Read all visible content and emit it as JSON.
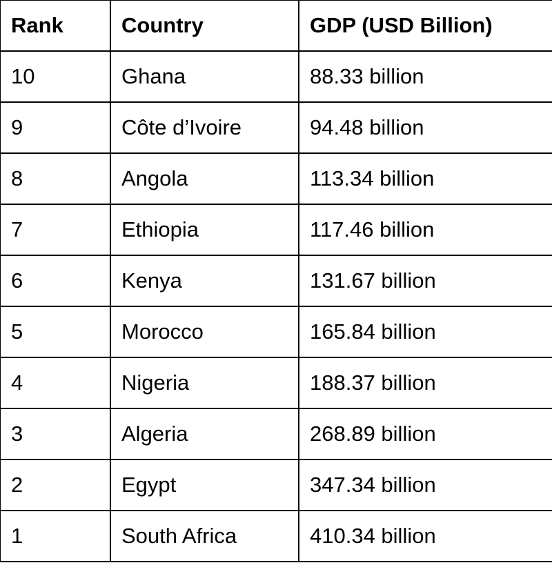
{
  "table": {
    "headers": {
      "rank": "Rank",
      "country": "Country",
      "gdp": "GDP (USD Billion)"
    },
    "rows": [
      {
        "rank": "10",
        "country": "Ghana",
        "gdp": "88.33 billion"
      },
      {
        "rank": "9",
        "country": "Côte d’Ivoire",
        "gdp": "94.48 billion"
      },
      {
        "rank": "8",
        "country": "Angola",
        "gdp": "113.34 billion"
      },
      {
        "rank": "7",
        "country": "Ethiopia",
        "gdp": "117.46 billion"
      },
      {
        "rank": "6",
        "country": "Kenya",
        "gdp": "131.67 billion"
      },
      {
        "rank": "5",
        "country": "Morocco",
        "gdp": "165.84 billion"
      },
      {
        "rank": "4",
        "country": "Nigeria",
        "gdp": "188.37 billion"
      },
      {
        "rank": "3",
        "country": "Algeria",
        "gdp": "268.89 billion"
      },
      {
        "rank": "2",
        "country": "Egypt",
        "gdp": "347.34 billion"
      },
      {
        "rank": "1",
        "country": "South Africa",
        "gdp": "410.34 billion"
      }
    ]
  }
}
